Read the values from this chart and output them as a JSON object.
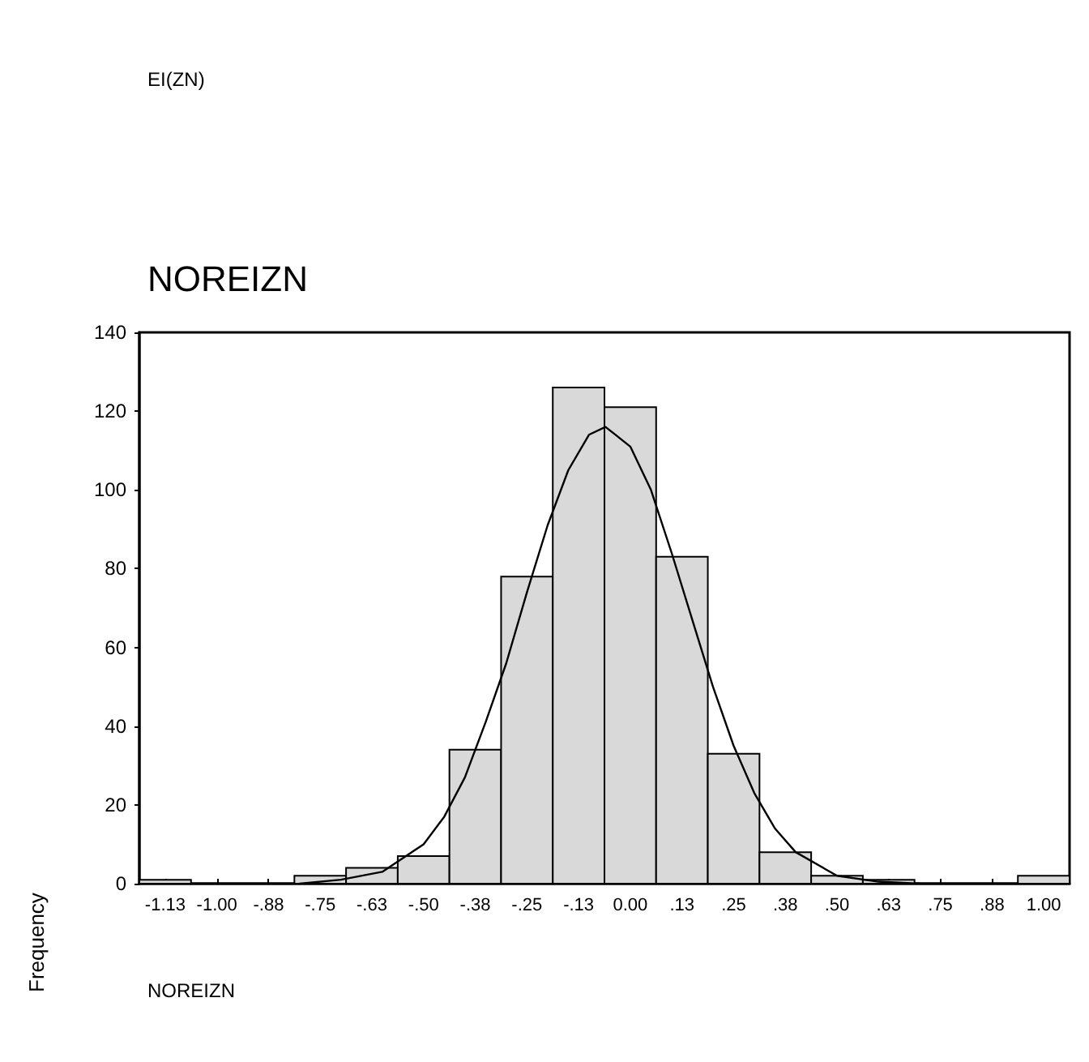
{
  "chart_data": {
    "type": "histogram",
    "title": "NOREIZN",
    "xlabel": "NOREIZN",
    "ylabel": "Frequency",
    "annotations": [
      "EI(ZN)"
    ],
    "bins": [
      -1.1875,
      -1.0625,
      -0.9375,
      -0.8125,
      -0.6875,
      -0.5625,
      -0.4375,
      -0.3125,
      -0.1875,
      -0.0625,
      0.0625,
      0.1875,
      0.3125,
      0.4375,
      0.5625,
      0.6875,
      0.8125,
      0.9375,
      1.0625
    ],
    "values": [
      1,
      0,
      0,
      2,
      4,
      7,
      34,
      78,
      126,
      121,
      83,
      33,
      8,
      2,
      1,
      0,
      0,
      2
    ],
    "color": "#d9d9d9",
    "series": [
      {
        "type": "line",
        "color": "#000000",
        "x": [
          -0.8,
          -0.7,
          -0.6,
          -0.5,
          -0.45,
          -0.4,
          -0.35,
          -0.3,
          -0.25,
          -0.2,
          -0.15,
          -0.1,
          -0.06,
          0,
          0.05,
          0.1,
          0.15,
          0.2,
          0.25,
          0.3,
          0.35,
          0.4,
          0.5,
          0.6,
          0.7
        ],
        "values": [
          0,
          1,
          3,
          10,
          17,
          27,
          41,
          56,
          74,
          91,
          105,
          114,
          116,
          111,
          100,
          84,
          67,
          50,
          35,
          23,
          14,
          8,
          2,
          0.5,
          0
        ]
      }
    ],
    "xlim": [
      -1.1875,
      1.0625
    ],
    "xticks": [
      {
        "value": -1.125,
        "label": "-1.13"
      },
      {
        "value": -1.0,
        "label": "-1.00"
      },
      {
        "value": -0.875,
        "label": "-.88"
      },
      {
        "value": -0.75,
        "label": "-.75"
      },
      {
        "value": -0.625,
        "label": "-.63"
      },
      {
        "value": -0.5,
        "label": "-.50"
      },
      {
        "value": -0.375,
        "label": "-.38"
      },
      {
        "value": -0.25,
        "label": "-.25"
      },
      {
        "value": -0.125,
        "label": "-.13"
      },
      {
        "value": 0,
        "label": "0.00"
      },
      {
        "value": 0.125,
        "label": ".13"
      },
      {
        "value": 0.25,
        "label": ".25"
      },
      {
        "value": 0.375,
        "label": ".38"
      },
      {
        "value": 0.5,
        "label": ".50"
      },
      {
        "value": 0.625,
        "label": ".63"
      },
      {
        "value": 0.75,
        "label": ".75"
      },
      {
        "value": 0.875,
        "label": ".88"
      },
      {
        "value": 1.0,
        "label": "1.00"
      }
    ],
    "ylim": [
      0,
      140
    ],
    "yticks": [
      0,
      20,
      40,
      60,
      80,
      100,
      120,
      140
    ],
    "grid": false,
    "marker": "none",
    "line_style": "solid"
  }
}
